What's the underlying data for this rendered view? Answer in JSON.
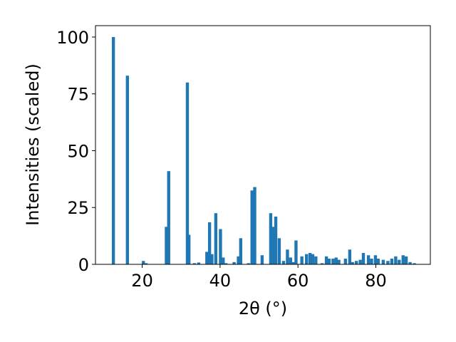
{
  "chart_data": {
    "type": "bar",
    "title": "",
    "xlabel": "2θ (°)",
    "ylabel": "Intensities (scaled)",
    "xlim": [
      8,
      94
    ],
    "ylim": [
      0,
      105
    ],
    "x_ticks": [
      20,
      40,
      60,
      80
    ],
    "y_ticks": [
      0,
      25,
      50,
      75,
      100
    ],
    "bar_width": 0.8,
    "color": "#1f77b4",
    "grid": false,
    "legend": "none",
    "x": [
      12.6,
      16.2,
      20.3,
      21.0,
      26.2,
      26.8,
      31.6,
      32.0,
      33.4,
      34.5,
      36.6,
      37.3,
      37.9,
      38.9,
      40.1,
      40.8,
      41.5,
      43.6,
      44.7,
      45.3,
      47.3,
      48.2,
      48.9,
      50.8,
      53.0,
      53.7,
      54.3,
      55.2,
      56.3,
      57.3,
      58.1,
      58.9,
      59.5,
      61.0,
      62.2,
      63.1,
      63.8,
      64.6,
      66.2,
      67.3,
      68.0,
      69.0,
      69.8,
      70.5,
      72.2,
      73.3,
      74.0,
      75.0,
      76.0,
      76.8,
      78.1,
      78.9,
      79.9,
      80.6,
      81.9,
      83.1,
      84.1,
      85.1,
      86.0,
      87.0,
      87.8,
      88.8,
      89.9
    ],
    "values": [
      100,
      83,
      1.5,
      0.5,
      16.5,
      41,
      80,
      13,
      0.5,
      0.8,
      5.5,
      18.5,
      4.5,
      22.5,
      15.5,
      3,
      0.5,
      1,
      3.5,
      11.5,
      0.5,
      32.5,
      34,
      4,
      22.5,
      16.5,
      21,
      11.5,
      1.5,
      6.5,
      3,
      1,
      10.5,
      3.5,
      4.5,
      5,
      4.5,
      3.5,
      0.5,
      3.5,
      2.5,
      2.5,
      3,
      2,
      2.5,
      6.5,
      1,
      1.5,
      2,
      5,
      4,
      2.5,
      4,
      2.5,
      2,
      1.5,
      2.5,
      3.5,
      2,
      4,
      3.5,
      1,
      0.5
    ]
  }
}
